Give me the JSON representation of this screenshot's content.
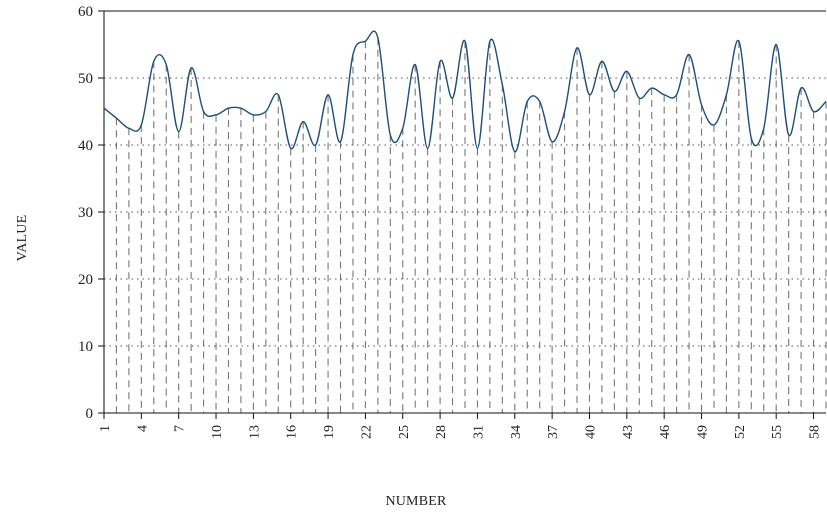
{
  "chart_data": {
    "type": "line",
    "title": "",
    "xlabel": "NUMBER",
    "ylabel": "VALUE",
    "xlim": [
      1,
      59
    ],
    "ylim": [
      0,
      60
    ],
    "y_ticks": [
      0,
      10,
      20,
      30,
      40,
      50,
      60
    ],
    "x_ticks": [
      1,
      4,
      7,
      10,
      13,
      16,
      19,
      22,
      25,
      28,
      31,
      34,
      37,
      40,
      43,
      46,
      49,
      52,
      55,
      58
    ],
    "grid": {
      "y_dotted_at": [
        10,
        20,
        30,
        40,
        50
      ],
      "x_dashed_drop_lines": true
    },
    "line_color": "#1f4e79",
    "x": [
      1,
      2,
      3,
      4,
      5,
      6,
      7,
      8,
      9,
      10,
      11,
      12,
      13,
      14,
      15,
      16,
      17,
      18,
      19,
      20,
      21,
      22,
      23,
      24,
      25,
      26,
      27,
      28,
      29,
      30,
      31,
      32,
      33,
      34,
      35,
      36,
      37,
      38,
      39,
      40,
      41,
      42,
      43,
      44,
      45,
      46,
      47,
      48,
      49,
      50,
      51,
      52,
      53,
      54,
      55,
      56,
      57,
      58,
      59
    ],
    "y": [
      45.5,
      44.0,
      42.5,
      43.0,
      52.5,
      52.0,
      42.0,
      51.5,
      45.0,
      44.5,
      45.5,
      45.5,
      44.5,
      45.0,
      47.5,
      39.5,
      43.5,
      40.0,
      47.5,
      40.5,
      53.5,
      55.5,
      56.0,
      41.5,
      42.5,
      52.0,
      39.5,
      52.5,
      47.0,
      55.5,
      39.5,
      55.5,
      49.0,
      39.0,
      46.5,
      46.5,
      40.5,
      45.0,
      54.5,
      47.5,
      52.5,
      48.0,
      51.0,
      47.0,
      48.5,
      47.5,
      47.5,
      53.5,
      46.0,
      43.0,
      47.5,
      55.5,
      41.0,
      42.5,
      55.0,
      41.5,
      48.5,
      45.0,
      46.5
    ]
  }
}
